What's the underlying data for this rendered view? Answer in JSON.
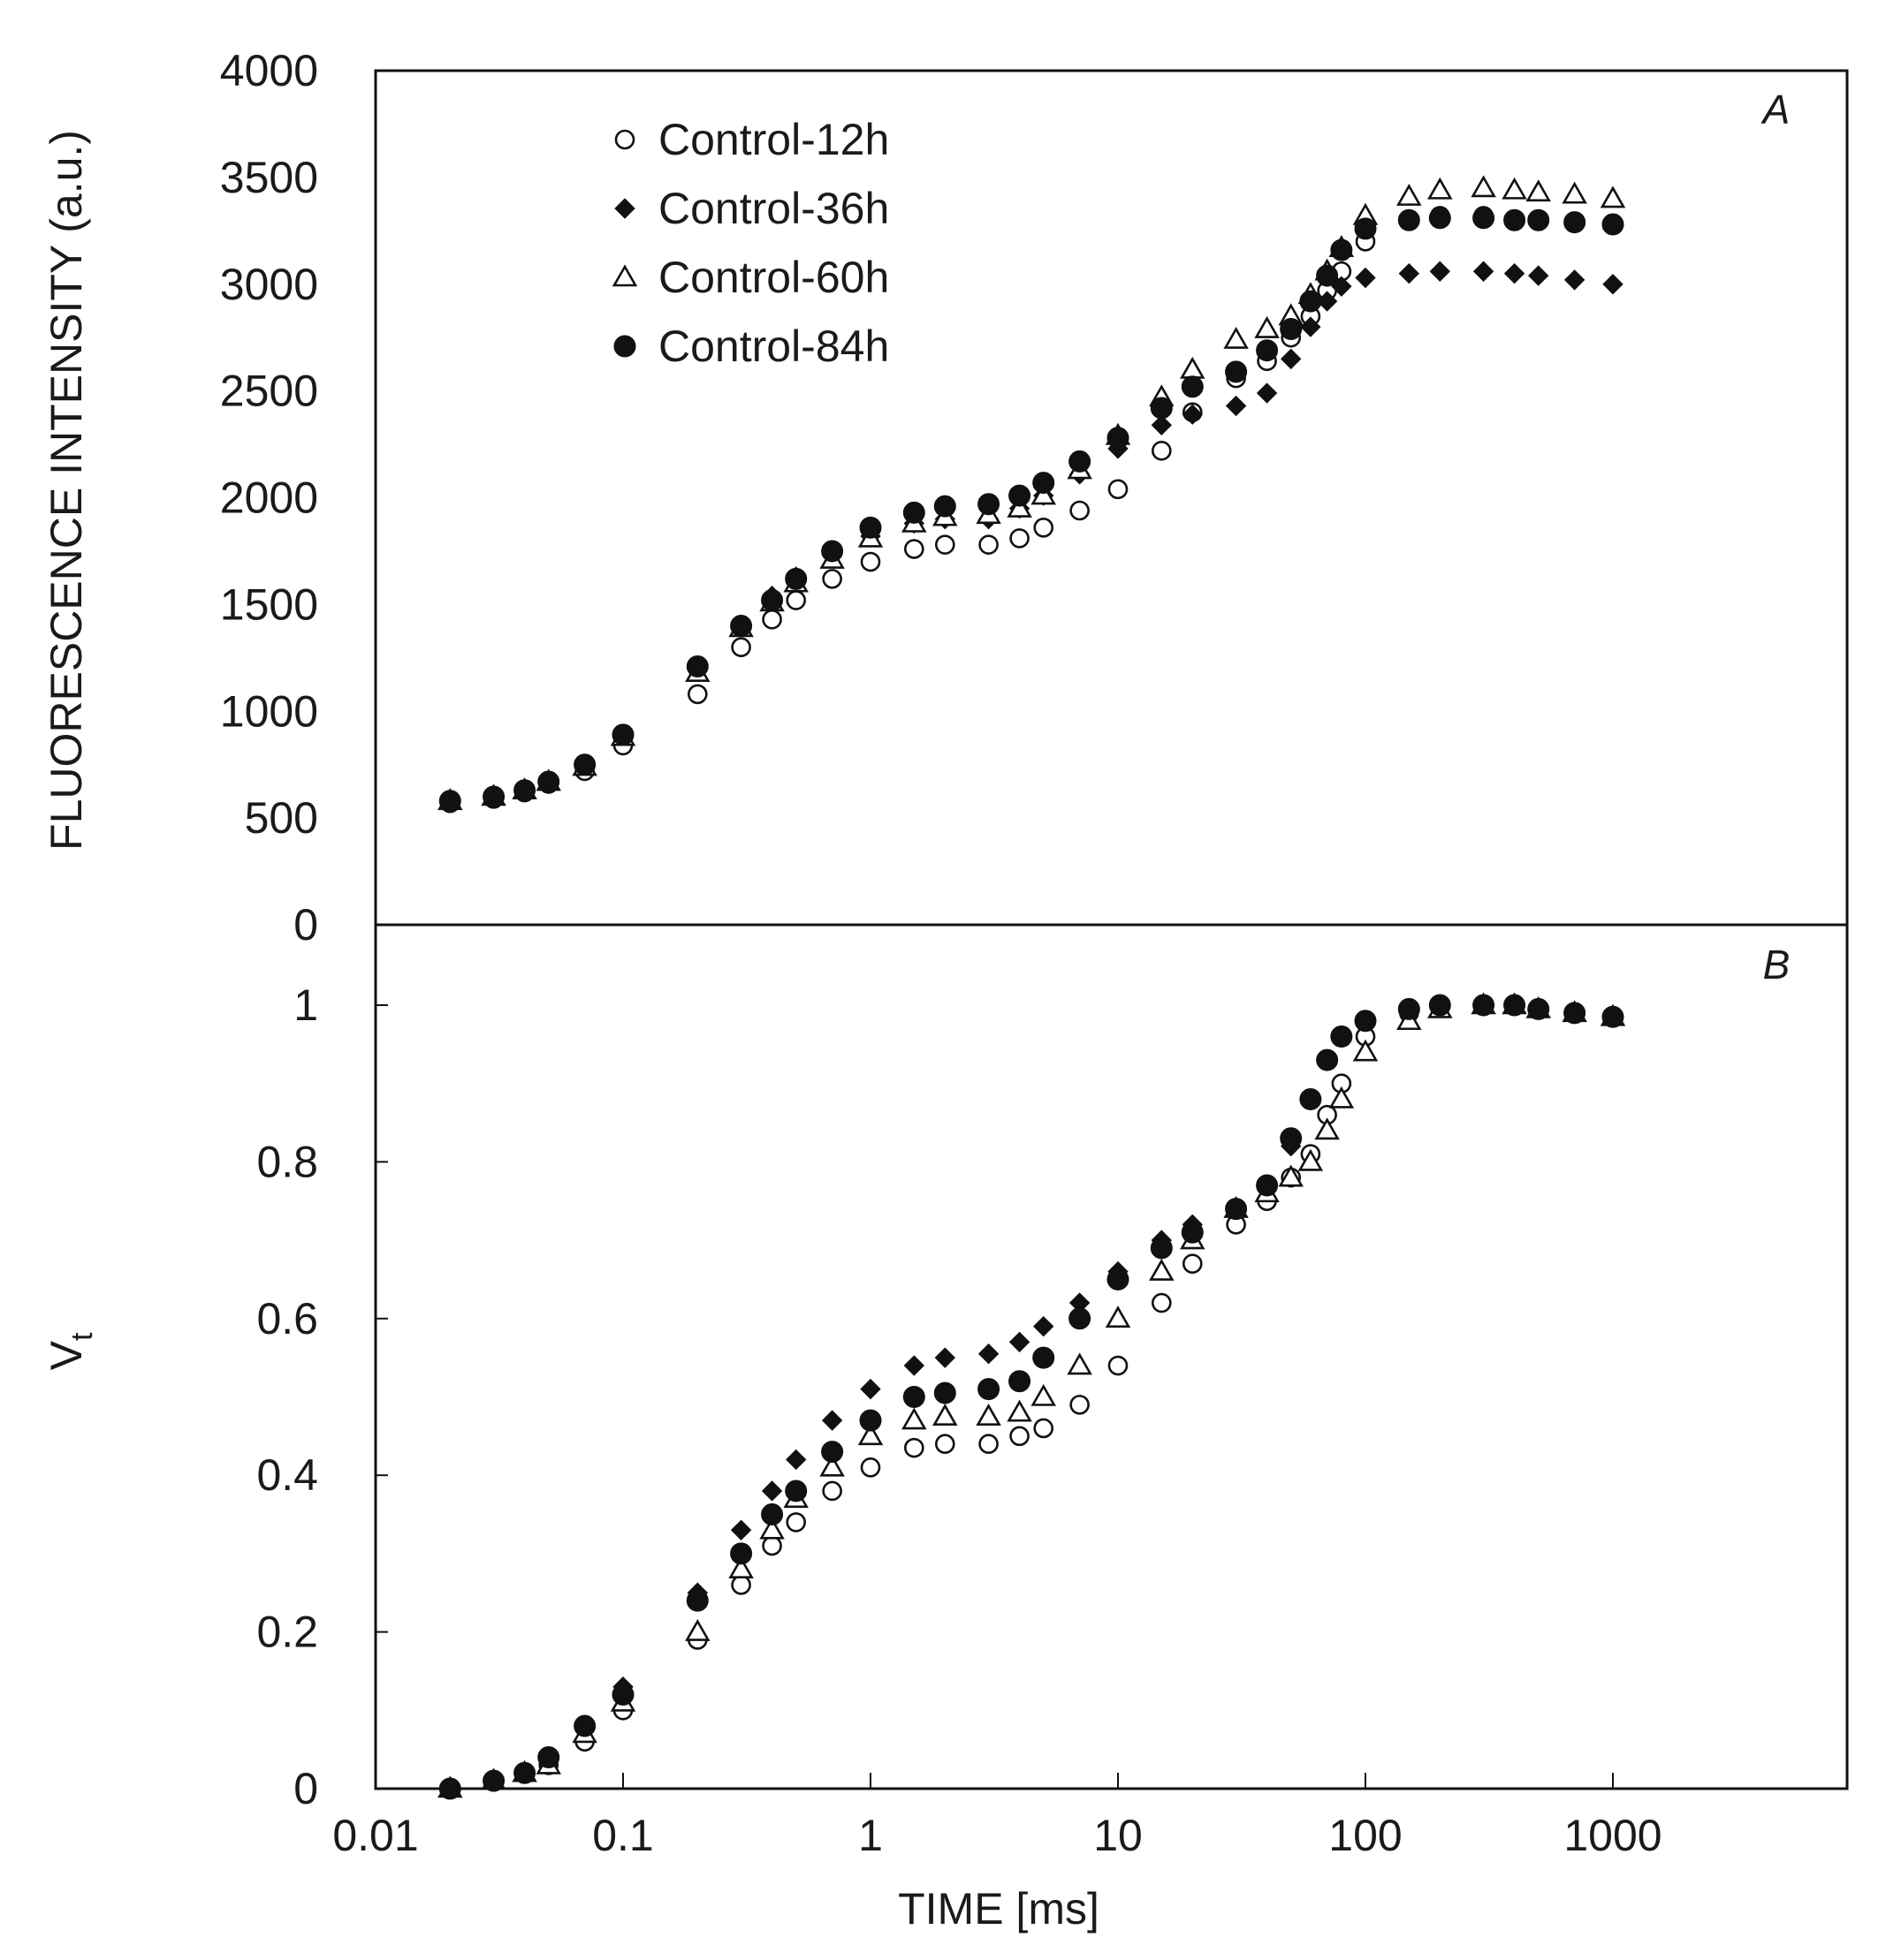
{
  "chart_data": [
    {
      "panel": "A",
      "type": "scatter",
      "panel_label": "A",
      "xlabel": "TIME [ms]",
      "ylabel": "FLUORESCENCE INTENSITY (a.u.)",
      "xscale": "log",
      "xlim": [
        0.01,
        7000
      ],
      "ylim": [
        0,
        4000
      ],
      "yticks": [
        "0",
        "500",
        "1000",
        "1500",
        "2000",
        "2500",
        "3000",
        "3500",
        "4000"
      ],
      "legend_position": "top-left",
      "series": [
        {
          "name": "Control-12h",
          "marker": "open-circle",
          "x": [
            0.02,
            0.03,
            0.04,
            0.05,
            0.07,
            0.1,
            0.2,
            0.3,
            0.4,
            0.5,
            0.7,
            1,
            1.5,
            2,
            3,
            4,
            5,
            7,
            10,
            15,
            20,
            30,
            40,
            50,
            60,
            70,
            80,
            100,
            150,
            200,
            300
          ],
          "values": [
            570,
            590,
            620,
            660,
            720,
            840,
            1080,
            1300,
            1430,
            1520,
            1620,
            1700,
            1760,
            1780,
            1780,
            1810,
            1860,
            1940,
            2040,
            2220,
            2400,
            2560,
            2640,
            2750,
            2850,
            2970,
            3060,
            3200,
            3300,
            3320,
            3320
          ]
        },
        {
          "name": "Control-36h",
          "marker": "filled-diamond",
          "x": [
            0.02,
            0.03,
            0.04,
            0.05,
            0.07,
            0.1,
            0.2,
            0.3,
            0.4,
            0.5,
            0.7,
            1,
            1.5,
            2,
            3,
            4,
            5,
            7,
            10,
            15,
            20,
            30,
            40,
            50,
            60,
            70,
            80,
            100,
            150,
            200,
            300,
            400,
            500,
            700,
            1000
          ],
          "values": [
            580,
            600,
            630,
            670,
            750,
            890,
            1200,
            1400,
            1540,
            1630,
            1730,
            1820,
            1880,
            1900,
            1900,
            1950,
            2010,
            2110,
            2230,
            2340,
            2390,
            2430,
            2490,
            2650,
            2800,
            2920,
            2990,
            3030,
            3050,
            3060,
            3060,
            3050,
            3040,
            3020,
            3000
          ]
        },
        {
          "name": "Control-60h",
          "marker": "open-triangle",
          "x": [
            0.02,
            0.03,
            0.04,
            0.05,
            0.07,
            0.1,
            0.2,
            0.3,
            0.4,
            0.5,
            0.7,
            1,
            1.5,
            2,
            3,
            4,
            5,
            7,
            10,
            15,
            20,
            30,
            40,
            50,
            60,
            70,
            80,
            100,
            150,
            200,
            300,
            400,
            500,
            700,
            1000
          ],
          "values": [
            580,
            600,
            630,
            670,
            740,
            880,
            1180,
            1390,
            1510,
            1600,
            1710,
            1810,
            1880,
            1910,
            1920,
            1950,
            2010,
            2130,
            2290,
            2470,
            2600,
            2740,
            2790,
            2850,
            2950,
            3060,
            3170,
            3320,
            3410,
            3440,
            3450,
            3440,
            3430,
            3420,
            3400
          ]
        },
        {
          "name": "Control-84h",
          "marker": "filled-circle",
          "x": [
            0.02,
            0.03,
            0.04,
            0.05,
            0.07,
            0.1,
            0.2,
            0.3,
            0.4,
            0.5,
            0.7,
            1,
            1.5,
            2,
            3,
            4,
            5,
            7,
            10,
            15,
            20,
            30,
            40,
            50,
            60,
            70,
            80,
            100,
            150,
            200,
            300,
            400,
            500,
            700,
            1000
          ],
          "values": [
            580,
            600,
            630,
            670,
            750,
            890,
            1210,
            1400,
            1520,
            1620,
            1750,
            1860,
            1930,
            1960,
            1970,
            2010,
            2070,
            2170,
            2280,
            2420,
            2520,
            2590,
            2690,
            2790,
            2920,
            3040,
            3160,
            3260,
            3300,
            3310,
            3310,
            3300,
            3300,
            3290,
            3280
          ]
        }
      ]
    },
    {
      "panel": "B",
      "type": "scatter",
      "panel_label": "B",
      "xlabel": "TIME [ms]",
      "ylabel": "V",
      "ylabel_subscript": "t",
      "xscale": "log",
      "xlim": [
        0.01,
        7000
      ],
      "xticks": [
        "0.01",
        "0.1",
        "1",
        "10",
        "100",
        "1000"
      ],
      "ylim": [
        0,
        1.1
      ],
      "yticks": [
        "0",
        "0.2",
        "0.4",
        "0.6",
        "0.8",
        "1"
      ],
      "series": [
        {
          "name": "Control-12h",
          "marker": "open-circle",
          "x": [
            0.02,
            0.03,
            0.04,
            0.05,
            0.07,
            0.1,
            0.2,
            0.3,
            0.4,
            0.5,
            0.7,
            1,
            1.5,
            2,
            3,
            4,
            5,
            7,
            10,
            15,
            20,
            30,
            40,
            50,
            60,
            70,
            80,
            100,
            150,
            200,
            300
          ],
          "values": [
            0,
            0.01,
            0.02,
            0.03,
            0.06,
            0.1,
            0.19,
            0.26,
            0.31,
            0.34,
            0.38,
            0.41,
            0.435,
            0.44,
            0.44,
            0.45,
            0.46,
            0.49,
            0.54,
            0.62,
            0.67,
            0.72,
            0.75,
            0.78,
            0.81,
            0.86,
            0.9,
            0.96,
            0.99,
            1.0,
            1.0
          ]
        },
        {
          "name": "Control-36h",
          "marker": "filled-diamond",
          "x": [
            0.02,
            0.03,
            0.04,
            0.05,
            0.07,
            0.1,
            0.2,
            0.3,
            0.4,
            0.5,
            0.7,
            1,
            1.5,
            2,
            3,
            4,
            5,
            7,
            10,
            15,
            20,
            30,
            40,
            50,
            60,
            70,
            80,
            100,
            150,
            200,
            300,
            400,
            500,
            700,
            1000
          ],
          "values": [
            0,
            0.01,
            0.02,
            0.04,
            0.08,
            0.13,
            0.25,
            0.33,
            0.38,
            0.42,
            0.47,
            0.51,
            0.54,
            0.55,
            0.555,
            0.57,
            0.59,
            0.62,
            0.66,
            0.7,
            0.72,
            0.74,
            0.77,
            0.82,
            0.88,
            0.93,
            0.96,
            0.98,
            0.995,
            1.0,
            1.0,
            1.0,
            0.995,
            0.99,
            0.985
          ]
        },
        {
          "name": "Control-60h",
          "marker": "open-triangle",
          "x": [
            0.02,
            0.03,
            0.04,
            0.05,
            0.07,
            0.1,
            0.2,
            0.3,
            0.4,
            0.5,
            0.7,
            1,
            1.5,
            2,
            3,
            4,
            5,
            7,
            10,
            15,
            20,
            30,
            40,
            50,
            60,
            70,
            80,
            100,
            150,
            200,
            300,
            400,
            500,
            700,
            1000
          ],
          "values": [
            0,
            0.01,
            0.02,
            0.03,
            0.07,
            0.11,
            0.2,
            0.28,
            0.33,
            0.37,
            0.41,
            0.45,
            0.47,
            0.475,
            0.475,
            0.48,
            0.5,
            0.54,
            0.6,
            0.66,
            0.7,
            0.74,
            0.76,
            0.78,
            0.8,
            0.84,
            0.88,
            0.94,
            0.98,
            0.995,
            1.0,
            1.0,
            0.995,
            0.99,
            0.985
          ]
        },
        {
          "name": "Control-84h",
          "marker": "filled-circle",
          "x": [
            0.02,
            0.03,
            0.04,
            0.05,
            0.07,
            0.1,
            0.2,
            0.3,
            0.4,
            0.5,
            0.7,
            1,
            1.5,
            2,
            3,
            4,
            5,
            7,
            10,
            15,
            20,
            30,
            40,
            50,
            60,
            70,
            80,
            100,
            150,
            200,
            300,
            400,
            500,
            700,
            1000
          ],
          "values": [
            0,
            0.01,
            0.02,
            0.04,
            0.08,
            0.12,
            0.24,
            0.3,
            0.35,
            0.38,
            0.43,
            0.47,
            0.5,
            0.505,
            0.51,
            0.52,
            0.55,
            0.6,
            0.65,
            0.69,
            0.71,
            0.74,
            0.77,
            0.83,
            0.88,
            0.93,
            0.96,
            0.98,
            0.995,
            1.0,
            1.0,
            1.0,
            0.995,
            0.99,
            0.985
          ]
        }
      ]
    }
  ]
}
